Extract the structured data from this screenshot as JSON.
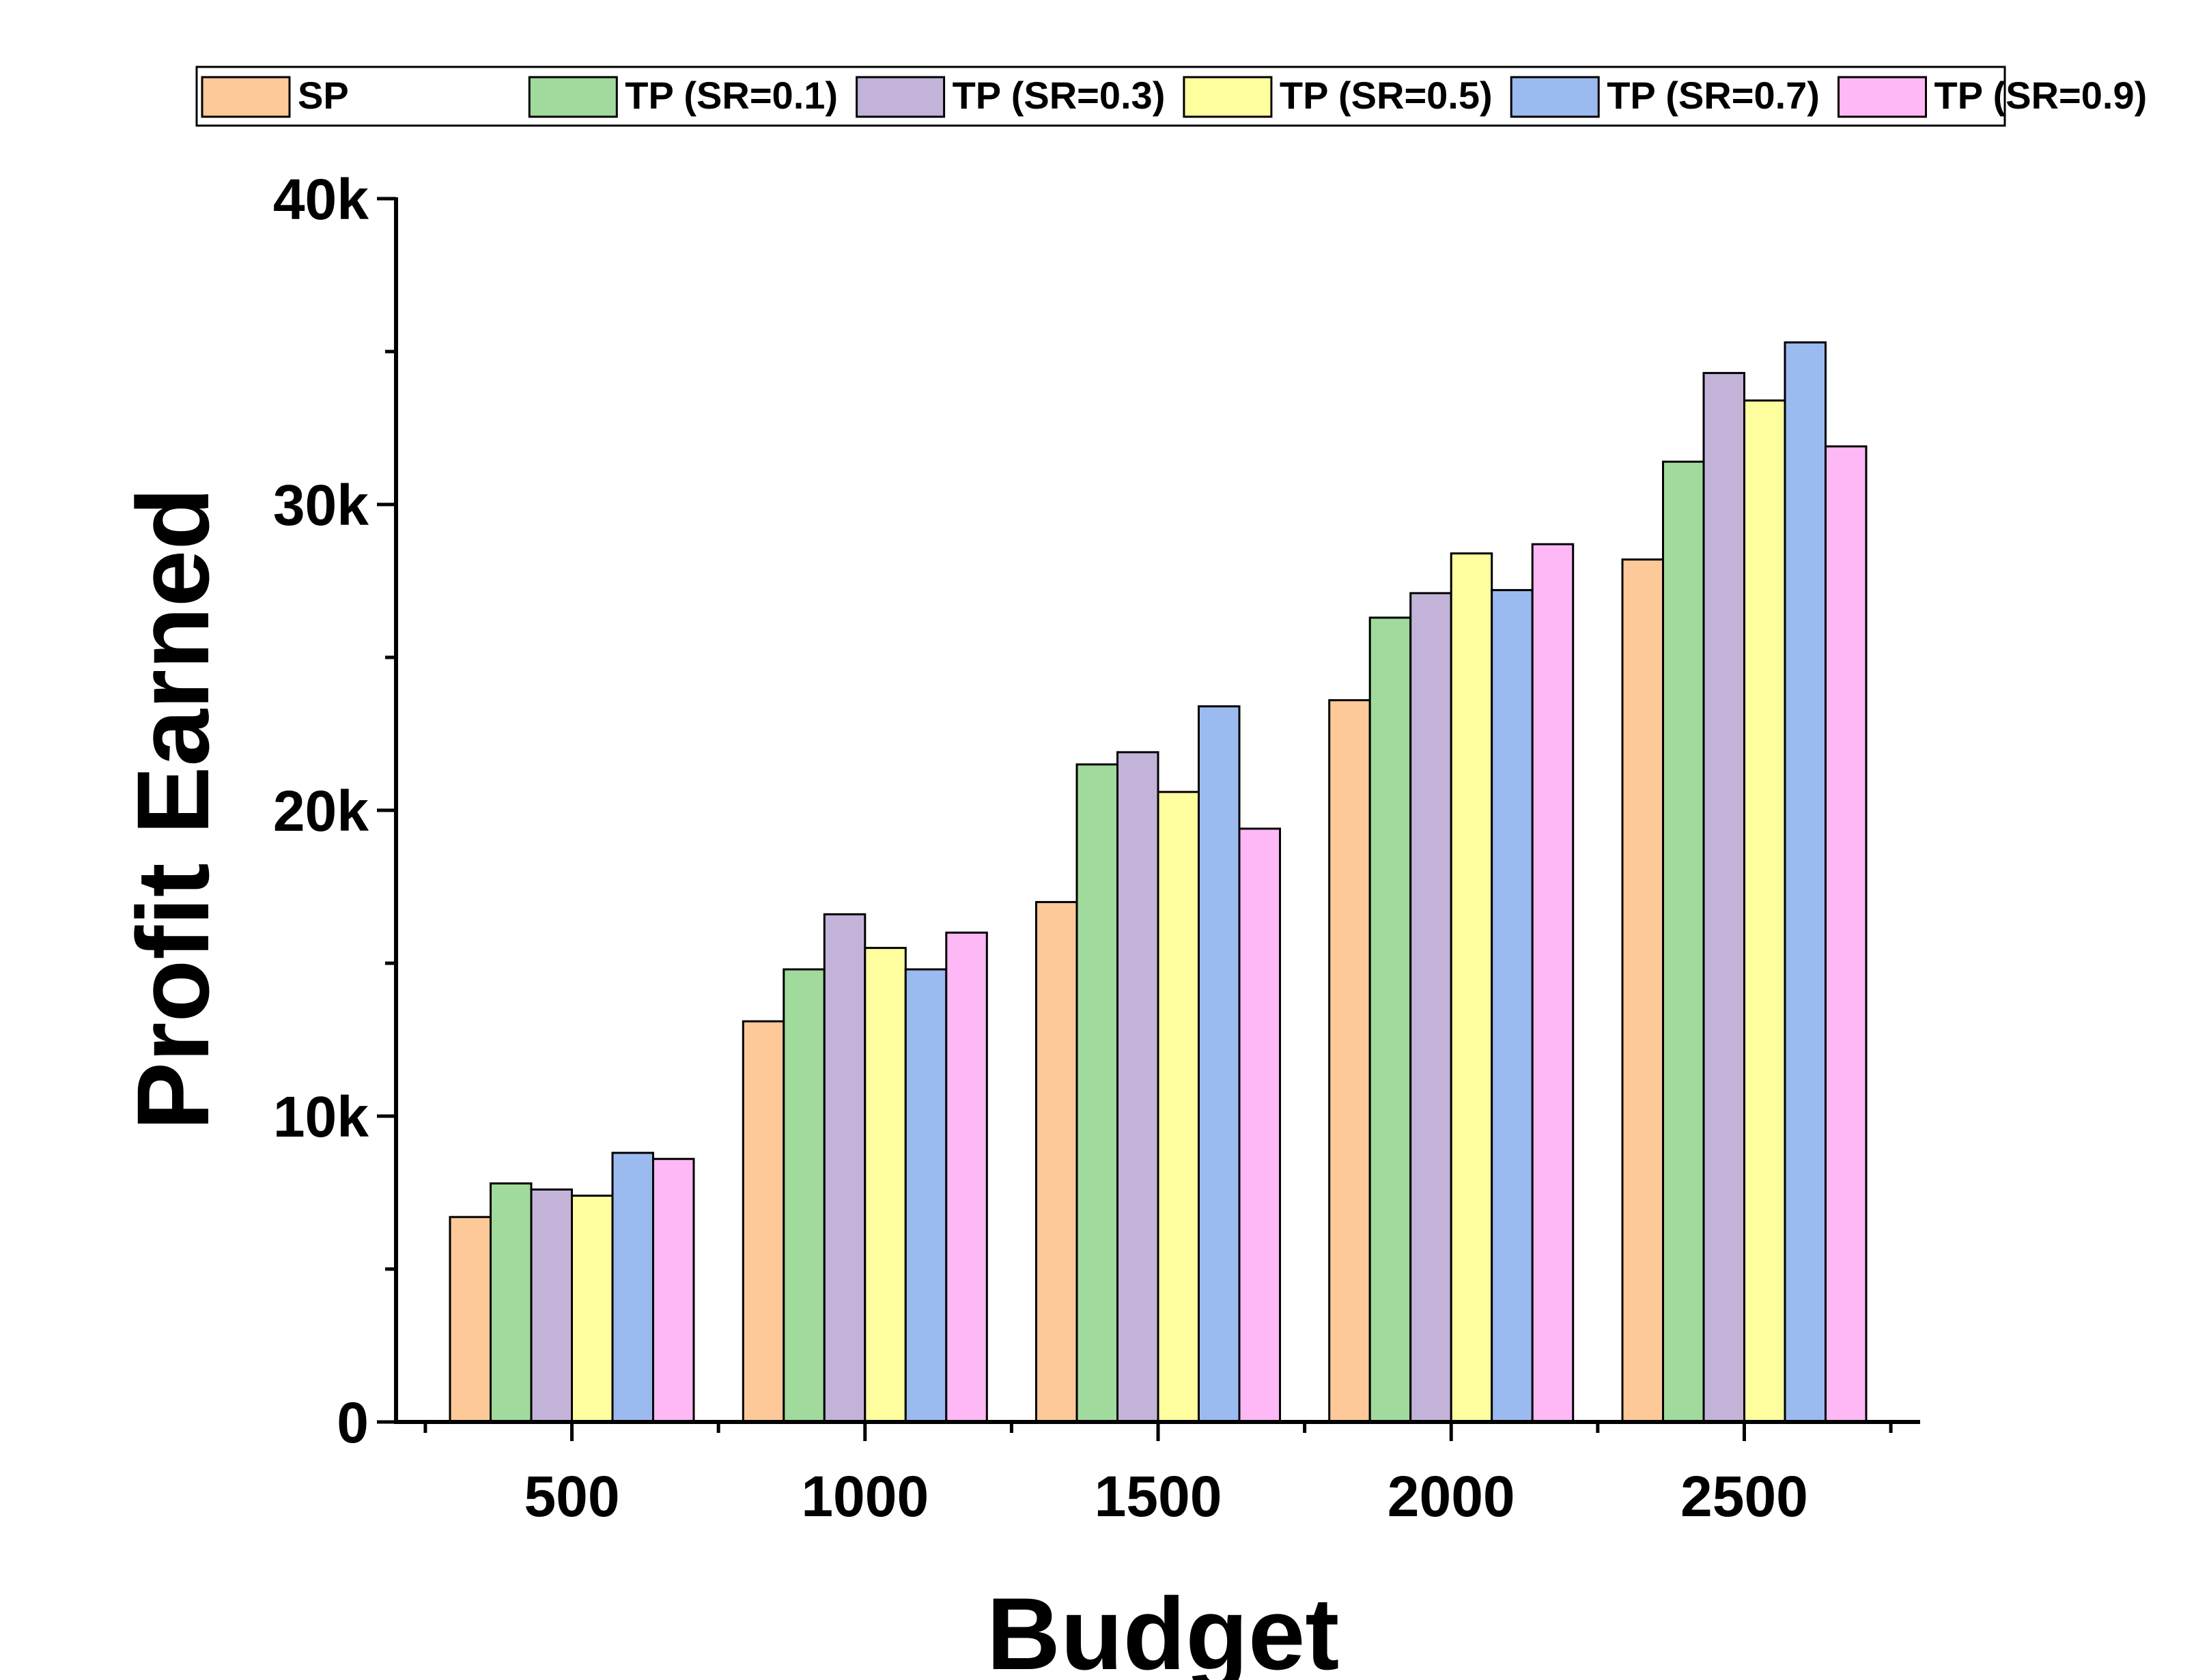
{
  "chart_data": {
    "type": "bar",
    "xlabel": "Budget",
    "ylabel": "Profit Earned",
    "categories": [
      "500",
      "1000",
      "1500",
      "2000",
      "2500"
    ],
    "ylim": [
      0,
      40000
    ],
    "yticks": [
      {
        "value": 0,
        "label": "0"
      },
      {
        "value": 10000,
        "label": "10k"
      },
      {
        "value": 20000,
        "label": "20k"
      },
      {
        "value": 30000,
        "label": "30k"
      },
      {
        "value": 40000,
        "label": "40k"
      }
    ],
    "grid": false,
    "legend_position": "top",
    "series": [
      {
        "name": "SP",
        "color": "#FDC998",
        "values": [
          6700,
          13100,
          17000,
          23600,
          28200
        ]
      },
      {
        "name": "TP (SR=0.1)",
        "color": "#A1DA9D",
        "values": [
          7800,
          14800,
          21500,
          26300,
          31400
        ]
      },
      {
        "name": "TP (SR=0.3)",
        "color": "#C3B3D8",
        "values": [
          7600,
          16600,
          21900,
          27100,
          34300
        ]
      },
      {
        "name": "TP (SR=0.5)",
        "color": "#FEFE9E",
        "values": [
          7400,
          15500,
          20600,
          28400,
          33400
        ]
      },
      {
        "name": "TP (SR=0.7)",
        "color": "#9BBAF0",
        "values": [
          8800,
          14800,
          23400,
          27200,
          35300
        ]
      },
      {
        "name": "TP (SR=0.9)",
        "color": "#FDB8F5",
        "values": [
          8600,
          16000,
          19400,
          28700,
          31900
        ]
      }
    ]
  }
}
